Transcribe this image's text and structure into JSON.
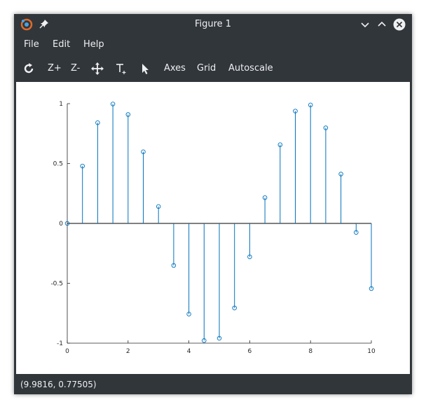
{
  "window": {
    "title": "Figure 1"
  },
  "menu": {
    "file": "File",
    "edit": "Edit",
    "help": "Help"
  },
  "toolbar": {
    "zoom_in": "Z+",
    "zoom_out": "Z-",
    "axes": "Axes",
    "grid": "Grid",
    "autoscale": "Autoscale"
  },
  "status": {
    "coords": "(9.9816, 0.77505)"
  },
  "colors": {
    "stem": "#0072bd",
    "window_bg": "#31363b",
    "text": "#eff0f1",
    "close_button": "#eff0f1"
  },
  "chart_data": {
    "type": "stem",
    "title": "",
    "xlabel": "",
    "ylabel": "",
    "xlim": [
      0,
      10
    ],
    "ylim": [
      -1,
      1
    ],
    "xticks": [
      "0",
      "2",
      "4",
      "6",
      "8",
      "10"
    ],
    "yticks": [
      "-1",
      "-0.5",
      "0",
      "0.5",
      "1"
    ],
    "grid": false,
    "marker": "circle",
    "x": [
      0,
      0.5,
      1,
      1.5,
      2,
      2.5,
      3,
      3.5,
      4,
      4.5,
      5,
      5.5,
      6,
      6.5,
      7,
      7.5,
      8,
      8.5,
      9,
      9.5,
      10
    ],
    "y": [
      0,
      0.479,
      0.841,
      0.997,
      0.909,
      0.598,
      0.141,
      -0.351,
      -0.757,
      -0.978,
      -0.959,
      -0.706,
      -0.279,
      0.215,
      0.657,
      0.938,
      0.989,
      0.798,
      0.412,
      -0.075,
      -0.544
    ]
  }
}
